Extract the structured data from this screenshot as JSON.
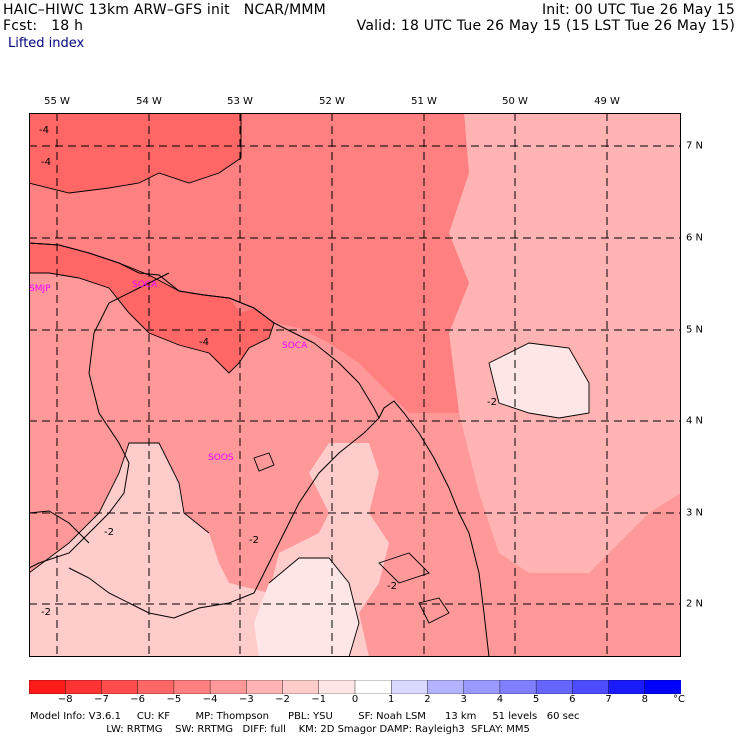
{
  "header": {
    "line1_left": "HAIC–HIWC 13km ARW–GFS init   NCAR/MMM",
    "line1_right": "Init: 00 UTC Tue 26 May 15",
    "line2_left": "Fcst:   18 h",
    "line2_right": "Valid: 18 UTC Tue 26 May 15 (15 LST Tue 26 May 15)",
    "field": "Lifted index"
  },
  "map": {
    "lon_labels": [
      "55 W",
      "54 W",
      "53 W",
      "52 W",
      "51 W",
      "50 W",
      "49 W"
    ],
    "lat_labels": [
      "7 N",
      "6 N",
      "5 N",
      "4 N",
      "3 N",
      "2 N"
    ],
    "stations": [
      "SMJP",
      "SOCA",
      "SOCA",
      "SOOS"
    ],
    "contour_labels": [
      "-4",
      "-4",
      "-4",
      "-2",
      "-2",
      "-2",
      "-2",
      "-2"
    ]
  },
  "colorbar": {
    "ticks": [
      "−8",
      "−7",
      "−6",
      "−5",
      "−4",
      "−3",
      "−2",
      "−1",
      "0",
      "1",
      "2",
      "3",
      "4",
      "5",
      "6",
      "7",
      "8"
    ],
    "unit": "°C",
    "colors": [
      "#ff1a1a",
      "#ff3333",
      "#ff4d4d",
      "#ff6666",
      "#ff8080",
      "#ff9999",
      "#ffb3b3",
      "#ffcccc",
      "#ffe6e6",
      "#ffffff",
      "#d9d9ff",
      "#b3b3ff",
      "#9999ff",
      "#8080ff",
      "#6666ff",
      "#4d4dff",
      "#1a1aff",
      "#0000ff"
    ]
  },
  "field_colors": {
    "le_minus4": "#ff6666",
    "minus4_to_minus3": "#ff8080",
    "minus3_to_minus2": "#ff9999",
    "minus2_to_minus1": "#ffcccc",
    "gt_minus1": "#ffe6e6"
  },
  "footer": {
    "line1": "Model Info: V3.6.1     CU: KF        MP: Thompson      PBL: YSU        SF: Noah LSM      13 km     51 levels   60 sec",
    "line2": "                        LW: RRTMG    SW: RRTMG   DIFF: full    KM: 2D Smagor DAMP: Rayleigh3  SFLAY: MM5"
  }
}
